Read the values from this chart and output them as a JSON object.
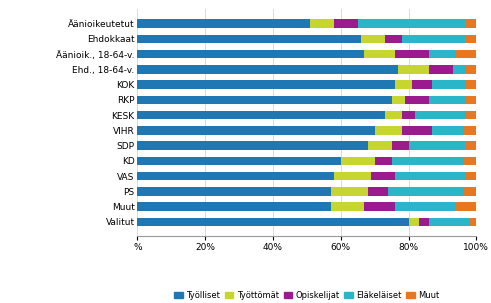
{
  "categories": [
    "Äänioikeutetut",
    "Ehdokkaat",
    "Äänioik., 18-64-v.",
    "Ehd., 18-64-v.",
    "KOK",
    "RKP",
    "KESK",
    "VIHR",
    "SDP",
    "KD",
    "VAS",
    "PS",
    "Muut",
    "Valitut"
  ],
  "series": {
    "Työlliset": [
      51,
      66,
      67,
      77,
      76,
      75,
      73,
      70,
      68,
      60,
      58,
      57,
      57,
      80
    ],
    "Työttömät": [
      7,
      7,
      9,
      9,
      5,
      4,
      5,
      8,
      7,
      10,
      11,
      11,
      10,
      3
    ],
    "Opiskelijat": [
      7,
      5,
      10,
      7,
      6,
      7,
      4,
      9,
      5,
      5,
      7,
      6,
      9,
      3
    ],
    "Eläkeläiset": [
      32,
      19,
      8,
      4,
      10,
      11,
      15,
      9,
      17,
      21,
      21,
      22,
      18,
      12
    ],
    "Muut": [
      3,
      3,
      6,
      3,
      3,
      3,
      3,
      4,
      3,
      4,
      3,
      4,
      6,
      2
    ]
  },
  "colors": {
    "Työlliset": "#1f77b4",
    "Työttömät": "#c7d530",
    "Opiskelijat": "#9b1b8e",
    "Eläkeläiset": "#2ab5c8",
    "Muut": "#e87722"
  },
  "xlim": [
    0,
    100
  ],
  "xticks": [
    0,
    20,
    40,
    60,
    80,
    100
  ],
  "xticklabels": [
    "%",
    "20%",
    "40%",
    "60%",
    "80%",
    "100%"
  ],
  "background_color": "#ffffff",
  "bar_height": 0.55,
  "figwidth": 4.91,
  "figheight": 3.03,
  "dpi": 100
}
